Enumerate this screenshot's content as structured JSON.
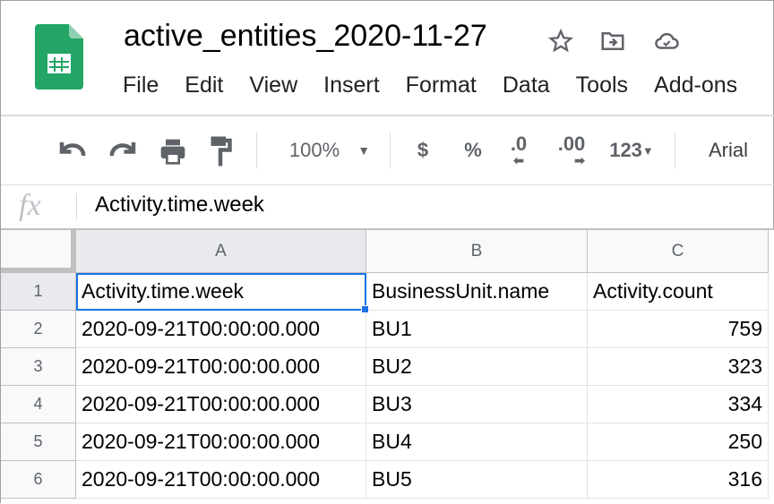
{
  "app": {
    "title": "active_entities_2020-11-27",
    "brand_color": "#0f9d58"
  },
  "menu": [
    "File",
    "Edit",
    "View",
    "Insert",
    "Format",
    "Data",
    "Tools",
    "Add-ons"
  ],
  "toolbar": {
    "zoom": "100%",
    "currency": "$",
    "percent": "%",
    "dec_decrease": ".0",
    "dec_increase": ".00",
    "more_formats": "123",
    "font": "Arial"
  },
  "formula_bar": {
    "label": "fx",
    "value": "Activity.time.week"
  },
  "sheet": {
    "columns": [
      "A",
      "B",
      "C"
    ],
    "rows": [
      {
        "n": "1",
        "cells": [
          "Activity.time.week",
          "BusinessUnit.name",
          "Activity.count"
        ]
      },
      {
        "n": "2",
        "cells": [
          "2020-09-21T00:00:00.000",
          "BU1",
          "759"
        ]
      },
      {
        "n": "3",
        "cells": [
          "2020-09-21T00:00:00.000",
          "BU2",
          "323"
        ]
      },
      {
        "n": "4",
        "cells": [
          "2020-09-21T00:00:00.000",
          "BU3",
          "334"
        ]
      },
      {
        "n": "5",
        "cells": [
          "2020-09-21T00:00:00.000",
          "BU4",
          "250"
        ]
      },
      {
        "n": "6",
        "cells": [
          "2020-09-21T00:00:00.000",
          "BU5",
          "316"
        ]
      }
    ],
    "selected_cell": "A1",
    "selection_color": "#1a73e8"
  }
}
